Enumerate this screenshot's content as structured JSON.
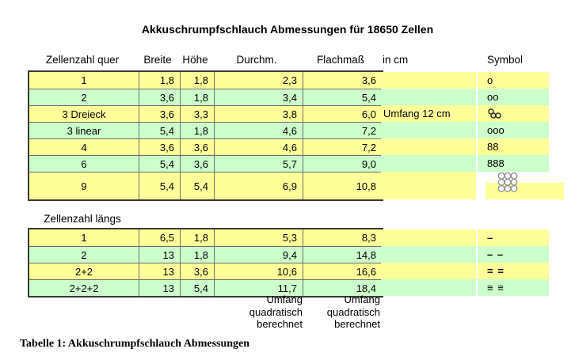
{
  "title": "Akkuschrumpfschlauch Abmessungen für 18650 Zellen",
  "colors": {
    "row_yellow": "#FFFF99",
    "row_green": "#CCFFCC",
    "grid_border": "#3a3a3a"
  },
  "headers": {
    "col1": "Zellenzahl quer",
    "col2": "Breite",
    "col3": "Höhe",
    "col4": "Durchm.",
    "col5": "Flachmaß",
    "col6": "in cm",
    "col7": "Symbol"
  },
  "table1": {
    "rows": [
      {
        "cells": [
          "1",
          "1,8",
          "1,8",
          "2,3",
          "3,6"
        ],
        "note": "",
        "fill": "yellow",
        "symbol": {
          "kind": "text",
          "value": "o"
        }
      },
      {
        "cells": [
          "2",
          "3,6",
          "1,8",
          "3,4",
          "5,4"
        ],
        "note": "",
        "fill": "green",
        "symbol": {
          "kind": "text",
          "value": "oo"
        }
      },
      {
        "cells": [
          "3 Dreieck",
          "3,6",
          "3,3",
          "3,8",
          "6,0"
        ],
        "note": "Umfang 12 cm",
        "fill": "yellow",
        "symbol": {
          "kind": "tri-circles",
          "value": "three cells triangle"
        }
      },
      {
        "cells": [
          "3 linear",
          "5,4",
          "1,8",
          "4,6",
          "7,2"
        ],
        "note": "",
        "fill": "green",
        "symbol": {
          "kind": "text",
          "value": "ooo"
        }
      },
      {
        "cells": [
          "4",
          "3,6",
          "3,6",
          "4,6",
          "7,2"
        ],
        "note": "",
        "fill": "yellow",
        "symbol": {
          "kind": "text",
          "value": "88"
        }
      },
      {
        "cells": [
          "6",
          "5,4",
          "3,6",
          "5,7",
          "9,0"
        ],
        "note": "",
        "fill": "green",
        "symbol": {
          "kind": "text",
          "value": "888"
        }
      },
      {
        "cells": [
          "9",
          "5,4",
          "5,4",
          "6,9",
          "10,8"
        ],
        "note": "",
        "fill": "yellow",
        "symbol": {
          "kind": "grid-3x3",
          "value": "nine cells grid"
        },
        "tall": true
      }
    ]
  },
  "table2": {
    "caption": "Zellenzahl längs",
    "rows": [
      {
        "cells": [
          "1",
          "6,5",
          "1,8",
          "5,3",
          "8,3"
        ],
        "note": "",
        "fill": "yellow",
        "symbol": {
          "kind": "text",
          "value": "–",
          "bold": true
        }
      },
      {
        "cells": [
          "2",
          "13",
          "1,8",
          "9,4",
          "14,8"
        ],
        "note": "",
        "fill": "green",
        "symbol": {
          "kind": "text",
          "value": "– –",
          "bold": true
        }
      },
      {
        "cells": [
          "2+2",
          "13",
          "3,6",
          "10,6",
          "16,6"
        ],
        "note": "",
        "fill": "yellow",
        "symbol": {
          "kind": "text",
          "value": "= =",
          "bold": true
        }
      },
      {
        "cells": [
          "2+2+2",
          "13",
          "5,4",
          "11,7",
          "18,4"
        ],
        "note": "",
        "fill": "green",
        "symbol": {
          "kind": "text",
          "value": "≡ ≡",
          "bold": true
        }
      }
    ]
  },
  "footnotes": {
    "durchm": [
      "Umfang",
      "quadratisch",
      "berechnet"
    ],
    "flachmass": [
      "Umfang",
      "quadratisch",
      "berechnet"
    ]
  },
  "caption": "Tabelle 1: Akkuschrumpfschlauch Abmessungen"
}
